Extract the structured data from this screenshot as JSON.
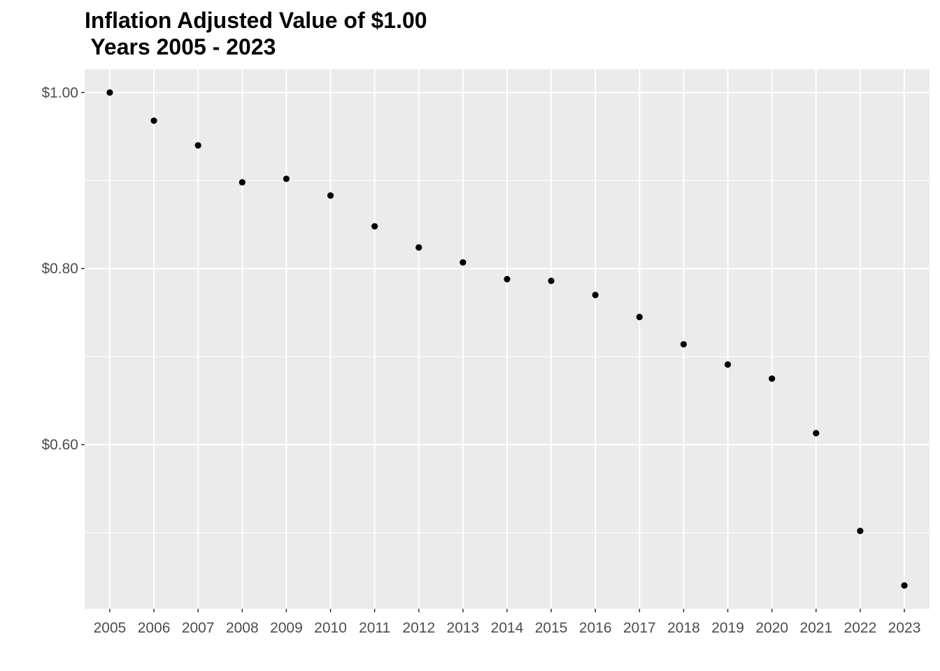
{
  "chart_data": {
    "type": "scatter",
    "title": "Inflation Adjusted Value of $1.00",
    "subtitle": " Years 2005 - 2023",
    "xlabel": "",
    "ylabel": "",
    "x": [
      2005,
      2006,
      2007,
      2008,
      2009,
      2010,
      2011,
      2012,
      2013,
      2014,
      2015,
      2016,
      2017,
      2018,
      2019,
      2020,
      2021,
      2022,
      2023
    ],
    "y": [
      1.0,
      0.968,
      0.94,
      0.898,
      0.902,
      0.883,
      0.848,
      0.824,
      0.807,
      0.788,
      0.786,
      0.77,
      0.745,
      0.714,
      0.691,
      0.675,
      0.613,
      0.502,
      0.44
    ],
    "x_tick_labels": [
      "2005",
      "2006",
      "2007",
      "2008",
      "2009",
      "2010",
      "2011",
      "2012",
      "2013",
      "2014",
      "2015",
      "2016",
      "2017",
      "2018",
      "2019",
      "2020",
      "2021",
      "2022",
      "2023"
    ],
    "y_ticks": [
      0.6,
      0.8,
      1.0
    ],
    "y_tick_labels": [
      "$0.60",
      "$0.80",
      "$1.00"
    ],
    "ylim": [
      0.4135,
      1.0265
    ],
    "grid": true,
    "legend": "none",
    "colors": {
      "panel_background": "#ebebeb",
      "grid_line": "#ffffff",
      "point": "#000000",
      "tick_text": "#4d4d4d",
      "tick_mark": "#333333"
    }
  }
}
